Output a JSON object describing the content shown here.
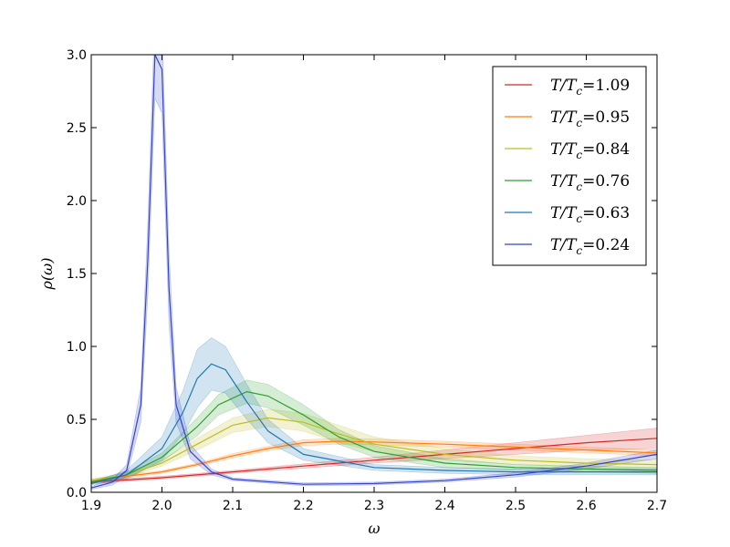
{
  "chart_data": {
    "type": "line",
    "title": "",
    "xlabel": "ω",
    "ylabel": "ρ(ω)",
    "xlim": [
      1.9,
      2.7
    ],
    "ylim": [
      0.0,
      3.0
    ],
    "xticks": [
      "1.9",
      "2.0",
      "2.1",
      "2.2",
      "2.3",
      "2.4",
      "2.5",
      "2.6",
      "2.7"
    ],
    "yticks": [
      "0.0",
      "0.5",
      "1.0",
      "1.5",
      "2.0",
      "2.5",
      "3.0"
    ],
    "grid": false,
    "legend_position": "top-right",
    "series": [
      {
        "name": "T/Tc=1.09",
        "color": "#d62728",
        "x": [
          1.9,
          2.0,
          2.1,
          2.2,
          2.3,
          2.4,
          2.5,
          2.6,
          2.7
        ],
        "y": [
          0.07,
          0.1,
          0.14,
          0.18,
          0.22,
          0.26,
          0.3,
          0.34,
          0.37
        ],
        "band": [
          0.01,
          0.01,
          0.01,
          0.015,
          0.02,
          0.03,
          0.04,
          0.05,
          0.07
        ]
      },
      {
        "name": "T/Tc=0.95",
        "color": "#ff7f0e",
        "x": [
          1.9,
          2.0,
          2.05,
          2.1,
          2.15,
          2.2,
          2.25,
          2.3,
          2.4,
          2.5,
          2.6,
          2.7
        ],
        "y": [
          0.08,
          0.14,
          0.19,
          0.25,
          0.3,
          0.34,
          0.35,
          0.345,
          0.33,
          0.31,
          0.29,
          0.27
        ],
        "band": [
          0.01,
          0.01,
          0.01,
          0.015,
          0.015,
          0.02,
          0.02,
          0.02,
          0.02,
          0.02,
          0.02,
          0.02
        ]
      },
      {
        "name": "T/Tc=0.84",
        "color": "#bcbd22",
        "x": [
          1.9,
          1.95,
          2.0,
          2.05,
          2.1,
          2.15,
          2.2,
          2.25,
          2.3,
          2.4,
          2.5,
          2.6,
          2.7
        ],
        "y": [
          0.08,
          0.12,
          0.2,
          0.33,
          0.46,
          0.51,
          0.48,
          0.4,
          0.33,
          0.26,
          0.22,
          0.2,
          0.19
        ],
        "band": [
          0.01,
          0.015,
          0.02,
          0.04,
          0.05,
          0.06,
          0.06,
          0.06,
          0.05,
          0.04,
          0.03,
          0.03,
          0.03
        ]
      },
      {
        "name": "T/Tc=0.76",
        "color": "#2ca02c",
        "x": [
          1.9,
          1.95,
          2.0,
          2.05,
          2.08,
          2.12,
          2.15,
          2.2,
          2.25,
          2.3,
          2.4,
          2.5,
          2.6,
          2.7
        ],
        "y": [
          0.07,
          0.12,
          0.24,
          0.45,
          0.6,
          0.69,
          0.66,
          0.53,
          0.38,
          0.28,
          0.2,
          0.17,
          0.16,
          0.15
        ],
        "band": [
          0.01,
          0.02,
          0.03,
          0.06,
          0.07,
          0.08,
          0.08,
          0.07,
          0.05,
          0.04,
          0.03,
          0.02,
          0.02,
          0.02
        ]
      },
      {
        "name": "T/Tc=0.63",
        "color": "#1f77b4",
        "x": [
          1.9,
          1.95,
          2.0,
          2.03,
          2.05,
          2.07,
          2.09,
          2.12,
          2.15,
          2.2,
          2.3,
          2.4,
          2.5,
          2.6,
          2.7
        ],
        "y": [
          0.06,
          0.12,
          0.3,
          0.55,
          0.78,
          0.88,
          0.84,
          0.62,
          0.42,
          0.26,
          0.17,
          0.15,
          0.14,
          0.14,
          0.14
        ],
        "band": [
          0.01,
          0.03,
          0.08,
          0.15,
          0.2,
          0.18,
          0.16,
          0.12,
          0.08,
          0.04,
          0.02,
          0.02,
          0.02,
          0.02,
          0.02
        ]
      },
      {
        "name": "T/Tc=0.24",
        "color": "#3344cc",
        "x": [
          1.9,
          1.93,
          1.95,
          1.97,
          1.98,
          1.99,
          2.0,
          2.01,
          2.02,
          2.04,
          2.07,
          2.1,
          2.2,
          2.3,
          2.4,
          2.5,
          2.6,
          2.7
        ],
        "y": [
          0.03,
          0.07,
          0.15,
          0.6,
          1.6,
          3.0,
          2.9,
          1.4,
          0.6,
          0.28,
          0.14,
          0.09,
          0.055,
          0.06,
          0.08,
          0.12,
          0.18,
          0.26
        ],
        "band": [
          0.01,
          0.02,
          0.04,
          0.12,
          0.25,
          0.3,
          0.3,
          0.25,
          0.12,
          0.05,
          0.02,
          0.01,
          0.01,
          0.01,
          0.01,
          0.015,
          0.02,
          0.03
        ]
      }
    ],
    "legend_labels": [
      {
        "main": "T/T",
        "sub": "c",
        "value": "=1.09"
      },
      {
        "main": "T/T",
        "sub": "c",
        "value": "=0.95"
      },
      {
        "main": "T/T",
        "sub": "c",
        "value": "=0.84"
      },
      {
        "main": "T/T",
        "sub": "c",
        "value": "=0.76"
      },
      {
        "main": "T/T",
        "sub": "c",
        "value": "=0.63"
      },
      {
        "main": "T/T",
        "sub": "c",
        "value": "=0.24"
      }
    ]
  }
}
